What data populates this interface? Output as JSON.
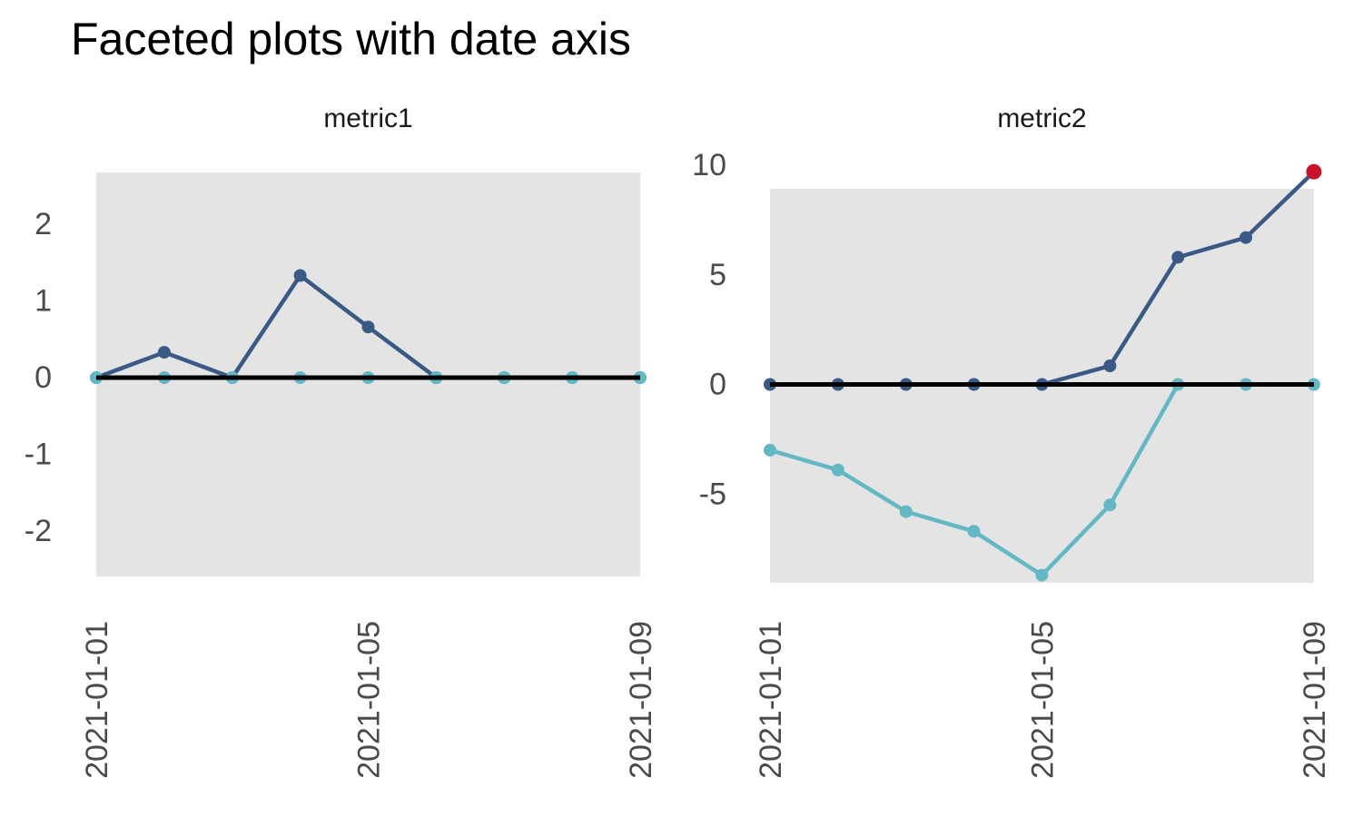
{
  "title": "Faceted plots with date axis",
  "colors": {
    "page_background": "#FFFFFF",
    "panel_background": "#E4E4E4",
    "zero_line": "#000000",
    "axis_text": "#4A4A4A",
    "title_text": "#000000",
    "dark_blue": "#3A5A85",
    "teal": "#63B8C4",
    "red_highlight": "#C9112B"
  },
  "chart_data": [
    {
      "type": "line",
      "facet_title": "metric1",
      "x": [
        "2021-01-01",
        "2021-01-02",
        "2021-01-03",
        "2021-01-04",
        "2021-01-05",
        "2021-01-06",
        "2021-01-07",
        "2021-01-08",
        "2021-01-09"
      ],
      "x_tick_labels": [
        "2021-01-01",
        "2021-01-05",
        "2021-01-09"
      ],
      "y_ticks": [
        2,
        1,
        0,
        -1,
        -2
      ],
      "ylim": [
        -2.6,
        2.67
      ],
      "grid": false,
      "legend": "none",
      "hline_y": 0,
      "series": [
        {
          "name": "dark-blue-series",
          "color": "#3A5A85",
          "values": [
            0,
            0.33,
            0,
            1.33,
            0.66,
            0,
            0,
            0,
            0
          ]
        },
        {
          "name": "teal-series",
          "color": "#63B8C4",
          "values": [
            0,
            0,
            0,
            0,
            0,
            0,
            0,
            0,
            0
          ]
        }
      ]
    },
    {
      "type": "line",
      "facet_title": "metric2",
      "x": [
        "2021-01-01",
        "2021-01-02",
        "2021-01-03",
        "2021-01-04",
        "2021-01-05",
        "2021-01-06",
        "2021-01-07",
        "2021-01-08",
        "2021-01-09"
      ],
      "x_tick_labels": [
        "2021-01-01",
        "2021-01-05",
        "2021-01-09"
      ],
      "y_ticks": [
        10,
        5,
        0,
        -5
      ],
      "ylim": [
        -9.1,
        8.95
      ],
      "grid": false,
      "legend": "none",
      "hline_y": 0,
      "series": [
        {
          "name": "dark-blue-series",
          "color": "#3A5A85",
          "values": [
            0,
            0,
            0,
            0,
            0,
            0.85,
            5.8,
            6.7,
            9.7
          ],
          "last_point": {
            "color": "#C9112B",
            "radius": 8.5
          }
        },
        {
          "name": "teal-series",
          "color": "#63B8C4",
          "values": [
            -3,
            -3.9,
            -5.8,
            -6.7,
            -8.7,
            -5.5,
            0,
            0,
            0
          ]
        }
      ]
    }
  ]
}
